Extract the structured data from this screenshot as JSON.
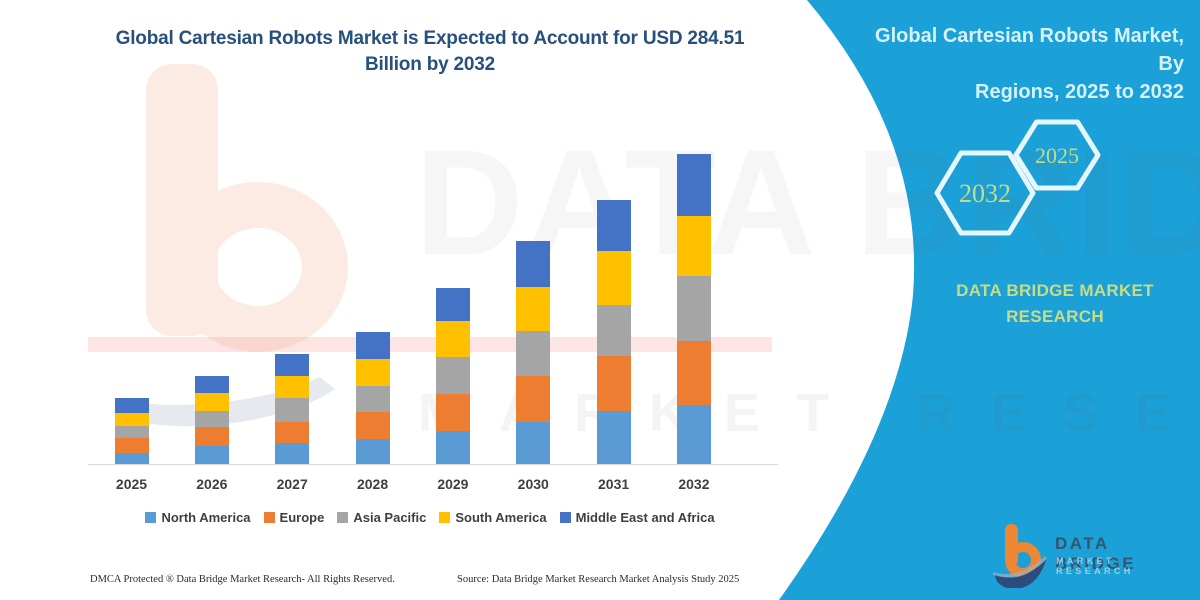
{
  "title_lines": [
    "Global Cartesian Robots Market is Expected to Account for USD 284.51",
    "Billion by 2032"
  ],
  "sidebar": {
    "heading_lines": [
      "Global Cartesian Robots Market, By",
      "Regions, 2025 to 2032"
    ],
    "hexagon_back_label": "2032",
    "hexagon_front_label": "2025",
    "brand_lines": [
      "DATA BRIDGE MARKET",
      "RESEARCH"
    ],
    "panel_color": "#1ba0d7",
    "hexagon_stroke_color": "#e6f6fd",
    "accent_text_color": "#c8db85"
  },
  "logo": {
    "title": "DATA BRIDGE",
    "subtitle": "MARKET RESEARCH",
    "b_icon_orange": "#ed8733",
    "b_icon_navy": "#2b4d7e"
  },
  "watermark": {
    "line1": "DATA BRIDGE",
    "line2": "MARKET RESEARCH"
  },
  "footer": {
    "dmca": "DMCA Protected ® Data Bridge Market Research-  All Rights Reserved.",
    "source": "Source: Data Bridge Market Research  Market Analysis Study 2025"
  },
  "chart_data": {
    "type": "bar",
    "stacked": true,
    "title": "Global Cartesian Robots Market is Expected to Account for USD 284.51 Billion by 2032",
    "unit": "USD Billion",
    "categories": [
      "2025",
      "2026",
      "2027",
      "2028",
      "2029",
      "2030",
      "2031",
      "2032"
    ],
    "series": [
      {
        "name": "North America",
        "color": "#5B9BD5",
        "values": [
          10.4,
          16.5,
          19.5,
          23.3,
          30.6,
          38.8,
          48.4,
          54.5
        ]
      },
      {
        "name": "Europe",
        "color": "#ED7D31",
        "values": [
          13.2,
          17.2,
          19.5,
          24.4,
          33.7,
          42.2,
          50.5,
          58.1
        ]
      },
      {
        "name": "Asia Pacific",
        "color": "#A5A5A5",
        "values": [
          11.3,
          15.0,
          21.5,
          23.9,
          33.7,
          41.3,
          47.4,
          59.7
        ]
      },
      {
        "name": "South America",
        "color": "#FFC000",
        "values": [
          12.2,
          16.8,
          20.5,
          25.0,
          33.0,
          39.8,
          48.9,
          55.1
        ]
      },
      {
        "name": "Middle East and Africa",
        "color": "#4472C4",
        "values": [
          13.2,
          15.3,
          20.5,
          24.5,
          30.6,
          42.2,
          47.4,
          57.11
        ]
      }
    ],
    "totals_note": "2032 stack totals USD 284.51 billion",
    "xlabel": "",
    "ylabel": "",
    "value_axis": "hidden",
    "gridlines": false,
    "legend_position": "bottom"
  }
}
